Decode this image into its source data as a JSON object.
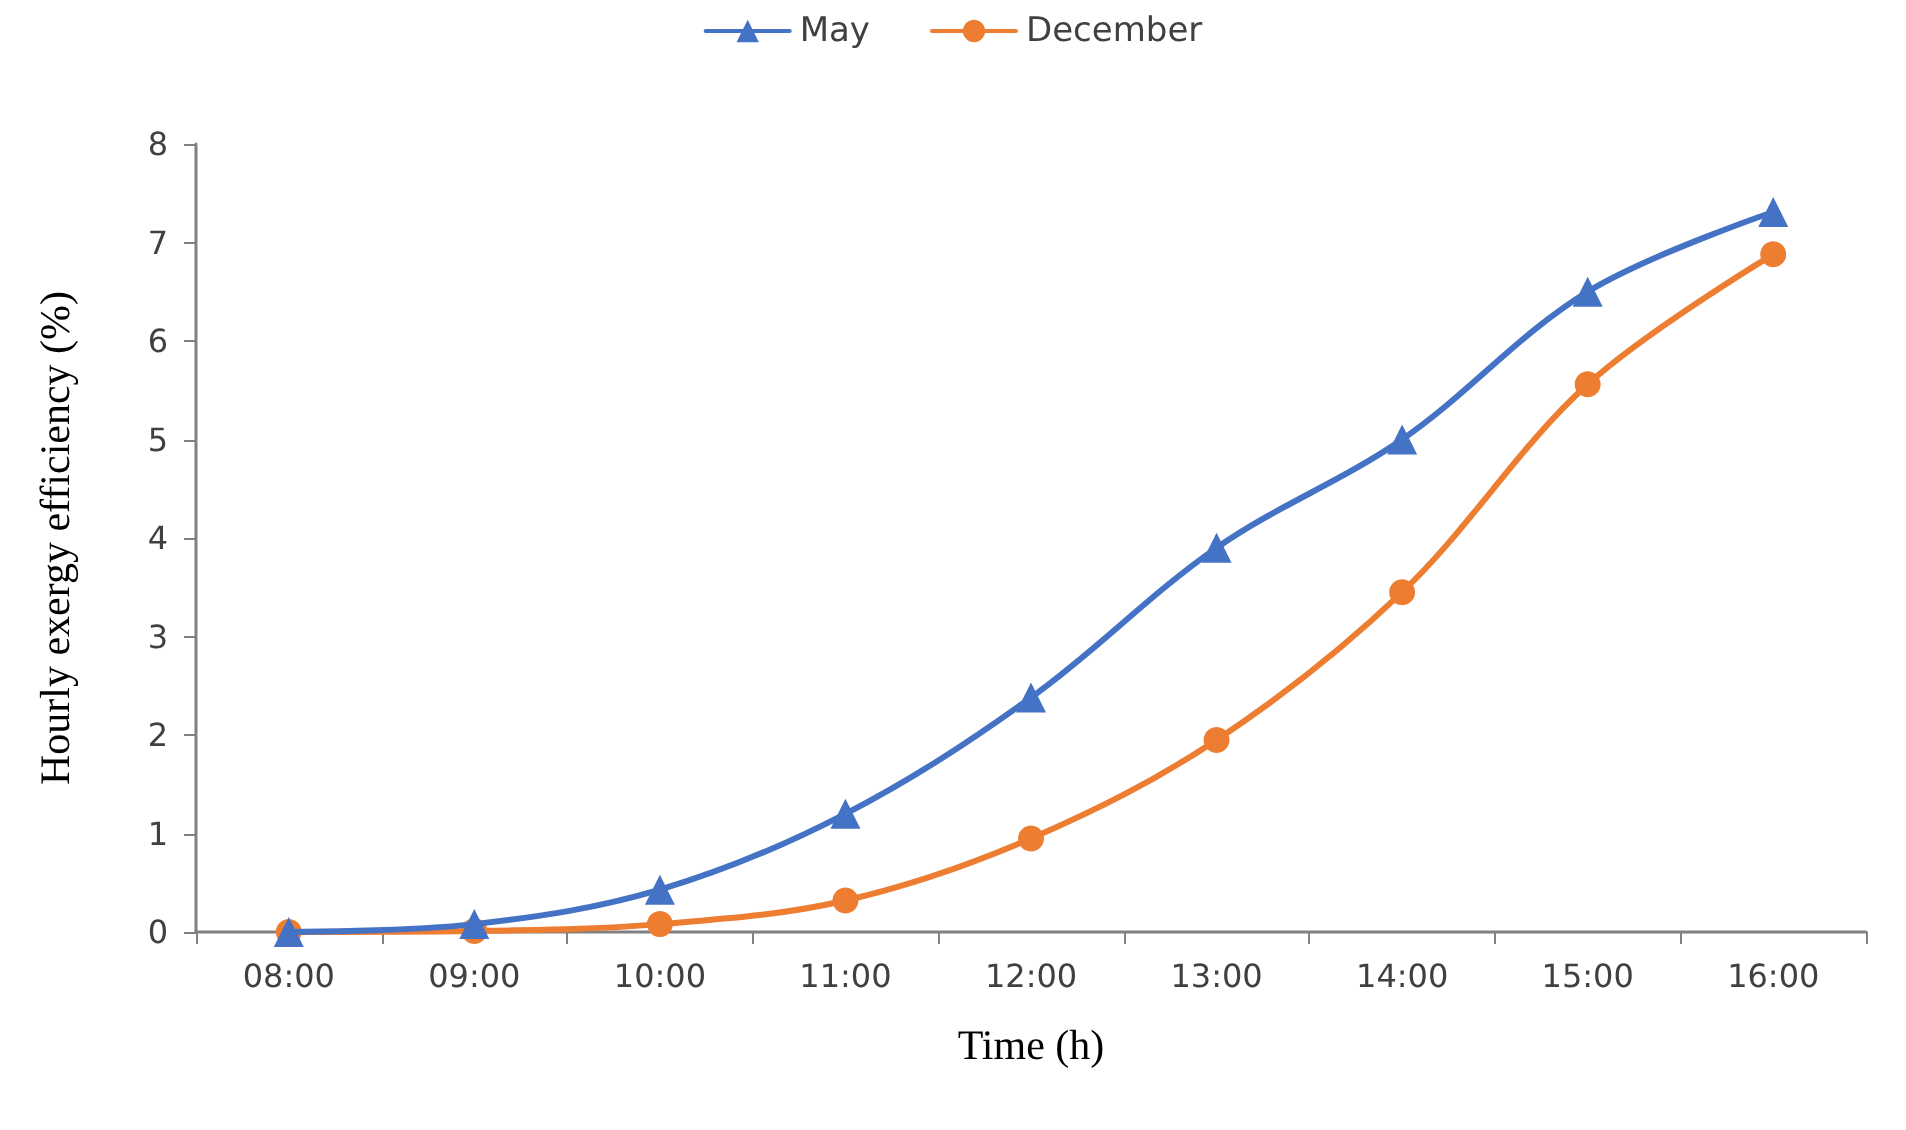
{
  "chart_data": {
    "type": "line",
    "xlabel": "Time (h)",
    "ylabel": "Hourly exergy efficiency (%)",
    "categories": [
      "08:00",
      "09:00",
      "10:00",
      "11:00",
      "12:00",
      "13:00",
      "14:00",
      "15:00",
      "16:00"
    ],
    "series": [
      {
        "name": "May",
        "color": "#4472c4",
        "marker": "triangle",
        "values": [
          0,
          0.08,
          0.43,
          1.2,
          2.38,
          3.9,
          5.0,
          6.5,
          7.31
        ]
      },
      {
        "name": "December",
        "color": "#ed7d31",
        "marker": "circle",
        "values": [
          0,
          0.01,
          0.08,
          0.32,
          0.95,
          1.95,
          3.45,
          5.56,
          6.88
        ]
      }
    ],
    "ylim": [
      0,
      8
    ],
    "yticks": [
      0,
      1,
      2,
      3,
      4,
      5,
      6,
      7,
      8
    ],
    "grid": false,
    "legend": "top",
    "line_style": "solid"
  }
}
